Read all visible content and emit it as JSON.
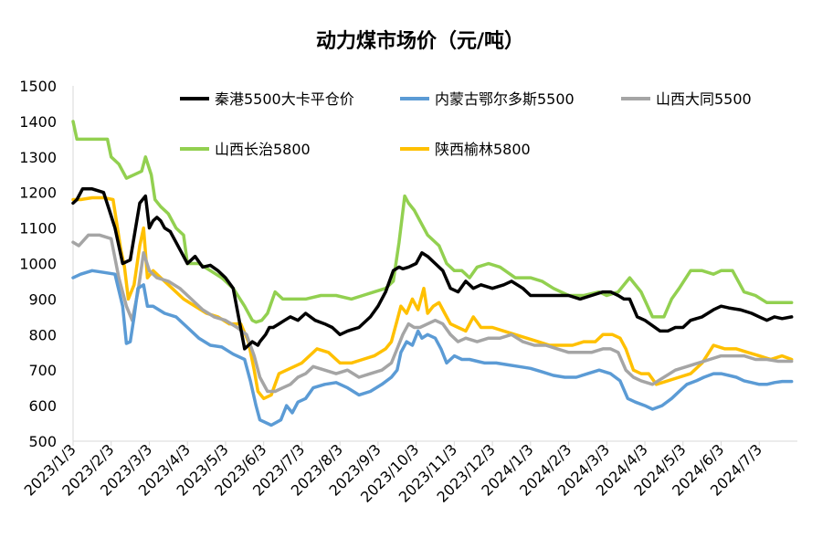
{
  "chart_data": {
    "type": "line",
    "title": "动力煤市场价（元/吨）",
    "xlabel": "",
    "ylabel": "",
    "ylim": [
      500,
      1500
    ],
    "yticks": [
      500,
      600,
      700,
      800,
      900,
      1000,
      1100,
      1200,
      1300,
      1400,
      1500
    ],
    "x_range": [
      0,
      19
    ],
    "x_ticks": [
      "2023/1/3",
      "2023/2/3",
      "2023/3/3",
      "2023/4/3",
      "2023/5/3",
      "2023/6/3",
      "2023/7/3",
      "2023/8/3",
      "2023/9/3",
      "2023/10/3",
      "2023/11/3",
      "2023/12/3",
      "2024/1/3",
      "2024/2/3",
      "2024/3/3",
      "2024/4/3",
      "2024/5/3",
      "2024/6/3",
      "2024/7/3"
    ],
    "grid": false,
    "legend_position": "top",
    "series": [
      {
        "name": "秦港5500大卡平仓价",
        "color": "#000000",
        "x": [
          0,
          0.1,
          0.25,
          0.5,
          0.8,
          0.95,
          1.1,
          1.3,
          1.5,
          1.75,
          1.9,
          2.0,
          2.1,
          2.2,
          2.3,
          2.4,
          2.55,
          2.7,
          3.0,
          3.2,
          3.4,
          3.6,
          3.8,
          4.0,
          4.2,
          4.5,
          4.7,
          4.85,
          4.9,
          5.05,
          5.15,
          5.25,
          5.4,
          5.55,
          5.7,
          5.9,
          6.1,
          6.35,
          6.6,
          6.8,
          7.0,
          7.2,
          7.5,
          7.8,
          8.0,
          8.2,
          8.4,
          8.55,
          8.65,
          8.8,
          9.0,
          9.15,
          9.3,
          9.5,
          9.7,
          9.9,
          10.1,
          10.3,
          10.5,
          10.7,
          11.0,
          11.3,
          11.5,
          11.8,
          12.0,
          12.3,
          12.6,
          13.0,
          13.3,
          13.6,
          13.9,
          14.1,
          14.3,
          14.45,
          14.6,
          14.8,
          15.0,
          15.2,
          15.4,
          15.6,
          15.8,
          16.0,
          16.2,
          16.5,
          16.8,
          17.0,
          17.2,
          17.5,
          17.8,
          18.0,
          18.2,
          18.4,
          18.6,
          18.85
        ],
        "values": [
          1170,
          1180,
          1210,
          1210,
          1200,
          1150,
          1100,
          1000,
          1010,
          1170,
          1190,
          1100,
          1120,
          1130,
          1120,
          1100,
          1090,
          1060,
          1000,
          1020,
          990,
          995,
          980,
          960,
          930,
          760,
          780,
          770,
          780,
          800,
          820,
          820,
          830,
          840,
          850,
          840,
          860,
          840,
          830,
          820,
          800,
          810,
          820,
          850,
          880,
          920,
          980,
          990,
          985,
          990,
          1000,
          1030,
          1020,
          1000,
          980,
          930,
          920,
          950,
          930,
          940,
          930,
          940,
          950,
          930,
          910,
          910,
          910,
          910,
          900,
          910,
          920,
          920,
          910,
          900,
          900,
          850,
          840,
          825,
          810,
          810,
          820,
          820,
          840,
          850,
          870,
          880,
          875,
          870,
          860,
          850,
          840,
          850,
          845,
          850
        ]
      },
      {
        "name": "内蒙古鄂尔多斯5500",
        "color": "#5B9BD5",
        "x": [
          0,
          0.2,
          0.5,
          0.8,
          1.1,
          1.3,
          1.4,
          1.5,
          1.6,
          1.7,
          1.85,
          1.95,
          2.1,
          2.4,
          2.7,
          3.0,
          3.3,
          3.6,
          3.9,
          4.2,
          4.5,
          4.65,
          4.8,
          4.9,
          5.2,
          5.45,
          5.6,
          5.75,
          5.9,
          6.1,
          6.3,
          6.6,
          6.9,
          7.2,
          7.5,
          7.8,
          8.1,
          8.35,
          8.5,
          8.6,
          8.75,
          8.9,
          9.05,
          9.15,
          9.3,
          9.5,
          9.65,
          9.8,
          10.0,
          10.2,
          10.4,
          10.6,
          10.8,
          11.1,
          11.4,
          11.7,
          12.0,
          12.3,
          12.6,
          12.9,
          13.2,
          13.5,
          13.8,
          14.1,
          14.35,
          14.55,
          14.75,
          15.0,
          15.2,
          15.45,
          15.7,
          15.9,
          16.1,
          16.35,
          16.55,
          16.8,
          17.0,
          17.2,
          17.4,
          17.6,
          17.8,
          18.0,
          18.2,
          18.4,
          18.6,
          18.85
        ],
        "values": [
          960,
          970,
          980,
          975,
          970,
          880,
          775,
          780,
          850,
          930,
          940,
          880,
          880,
          860,
          850,
          820,
          790,
          770,
          765,
          745,
          730,
          670,
          600,
          560,
          545,
          560,
          600,
          580,
          610,
          620,
          650,
          660,
          665,
          650,
          630,
          640,
          660,
          680,
          700,
          750,
          780,
          770,
          810,
          790,
          800,
          790,
          760,
          720,
          740,
          730,
          730,
          725,
          720,
          720,
          715,
          710,
          705,
          695,
          685,
          680,
          680,
          690,
          700,
          690,
          670,
          620,
          610,
          600,
          590,
          600,
          620,
          640,
          660,
          670,
          680,
          690,
          690,
          685,
          680,
          670,
          665,
          660,
          660,
          665,
          668,
          668
        ]
      },
      {
        "name": "山西大同5500",
        "color": "#A5A5A5",
        "x": [
          0,
          0.15,
          0.4,
          0.7,
          1.0,
          1.2,
          1.4,
          1.55,
          1.7,
          1.85,
          2.0,
          2.2,
          2.5,
          2.8,
          3.1,
          3.4,
          3.7,
          4.0,
          4.3,
          4.55,
          4.75,
          4.9,
          5.1,
          5.3,
          5.5,
          5.7,
          5.9,
          6.1,
          6.3,
          6.6,
          6.9,
          7.2,
          7.5,
          7.8,
          8.1,
          8.35,
          8.5,
          8.65,
          8.8,
          8.95,
          9.1,
          9.3,
          9.5,
          9.7,
          9.9,
          10.1,
          10.3,
          10.6,
          10.9,
          11.2,
          11.5,
          11.8,
          12.1,
          12.4,
          12.7,
          13.0,
          13.3,
          13.6,
          13.9,
          14.1,
          14.3,
          14.5,
          14.7,
          14.9,
          15.2,
          15.5,
          15.8,
          16.1,
          16.4,
          16.7,
          17.0,
          17.3,
          17.6,
          17.9,
          18.2,
          18.5,
          18.85
        ],
        "values": [
          1060,
          1050,
          1080,
          1080,
          1070,
          960,
          880,
          840,
          920,
          1030,
          980,
          960,
          950,
          930,
          900,
          870,
          850,
          840,
          820,
          800,
          740,
          680,
          640,
          640,
          650,
          660,
          680,
          690,
          710,
          700,
          690,
          700,
          680,
          690,
          700,
          720,
          760,
          800,
          830,
          820,
          820,
          830,
          840,
          830,
          800,
          780,
          790,
          780,
          790,
          790,
          800,
          780,
          770,
          770,
          760,
          750,
          750,
          750,
          760,
          760,
          750,
          700,
          680,
          670,
          660,
          680,
          700,
          710,
          720,
          730,
          740,
          740,
          740,
          730,
          730,
          725,
          725
        ]
      },
      {
        "name": "山西长治5800",
        "color": "#92D050",
        "x": [
          0,
          0.1,
          0.5,
          0.9,
          1.0,
          1.2,
          1.4,
          1.6,
          1.8,
          1.9,
          2.05,
          2.15,
          2.3,
          2.5,
          2.7,
          2.9,
          3.0,
          3.3,
          3.6,
          3.9,
          4.2,
          4.5,
          4.7,
          4.8,
          4.95,
          5.1,
          5.3,
          5.5,
          5.8,
          6.1,
          6.5,
          6.9,
          7.3,
          7.6,
          7.9,
          8.2,
          8.4,
          8.55,
          8.7,
          8.8,
          8.95,
          9.1,
          9.3,
          9.6,
          9.8,
          10.0,
          10.2,
          10.4,
          10.6,
          10.9,
          11.2,
          11.6,
          12.0,
          12.3,
          12.6,
          13.0,
          13.4,
          13.8,
          14.0,
          14.3,
          14.6,
          14.9,
          15.2,
          15.5,
          15.7,
          15.9,
          16.2,
          16.5,
          16.8,
          17.0,
          17.3,
          17.6,
          17.9,
          18.2,
          18.5,
          18.85
        ],
        "values": [
          1400,
          1350,
          1350,
          1350,
          1300,
          1280,
          1240,
          1250,
          1260,
          1300,
          1250,
          1180,
          1160,
          1140,
          1100,
          1080,
          1000,
          1000,
          980,
          960,
          930,
          880,
          840,
          835,
          840,
          860,
          920,
          900,
          900,
          900,
          910,
          910,
          900,
          910,
          920,
          930,
          950,
          1060,
          1190,
          1170,
          1150,
          1120,
          1080,
          1050,
          1000,
          980,
          980,
          960,
          990,
          1000,
          990,
          960,
          960,
          950,
          930,
          910,
          910,
          920,
          910,
          920,
          960,
          920,
          850,
          850,
          900,
          930,
          980,
          980,
          970,
          980,
          980,
          920,
          910,
          890,
          890,
          890
        ]
      },
      {
        "name": "陕西榆林5800",
        "color": "#FFC000",
        "x": [
          0,
          0.2,
          0.5,
          0.8,
          1.05,
          1.25,
          1.35,
          1.45,
          1.6,
          1.75,
          1.85,
          1.95,
          2.1,
          2.3,
          2.6,
          2.9,
          3.2,
          3.5,
          3.8,
          4.1,
          4.4,
          4.6,
          4.75,
          4.85,
          5.0,
          5.2,
          5.4,
          5.6,
          5.8,
          6.0,
          6.2,
          6.4,
          6.7,
          7.0,
          7.3,
          7.6,
          7.9,
          8.2,
          8.35,
          8.5,
          8.6,
          8.75,
          8.9,
          9.05,
          9.2,
          9.3,
          9.45,
          9.6,
          9.75,
          9.9,
          10.1,
          10.3,
          10.5,
          10.7,
          11.0,
          11.3,
          11.6,
          11.9,
          12.2,
          12.5,
          12.8,
          13.1,
          13.4,
          13.7,
          13.9,
          14.15,
          14.35,
          14.5,
          14.7,
          14.9,
          15.1,
          15.3,
          15.6,
          15.9,
          16.2,
          16.5,
          16.8,
          17.1,
          17.4,
          17.7,
          18.0,
          18.3,
          18.6,
          18.85
        ],
        "values": [
          1180,
          1180,
          1185,
          1185,
          1180,
          1040,
          990,
          900,
          940,
          1050,
          1100,
          960,
          980,
          960,
          930,
          900,
          880,
          860,
          850,
          830,
          830,
          780,
          700,
          640,
          620,
          630,
          690,
          700,
          710,
          720,
          740,
          760,
          750,
          720,
          720,
          730,
          740,
          760,
          780,
          840,
          880,
          860,
          900,
          870,
          930,
          860,
          880,
          890,
          860,
          830,
          820,
          810,
          850,
          820,
          820,
          810,
          800,
          790,
          780,
          770,
          770,
          770,
          780,
          780,
          800,
          800,
          790,
          760,
          700,
          690,
          690,
          660,
          670,
          680,
          690,
          720,
          770,
          760,
          760,
          750,
          740,
          730,
          740,
          730
        ]
      }
    ]
  }
}
